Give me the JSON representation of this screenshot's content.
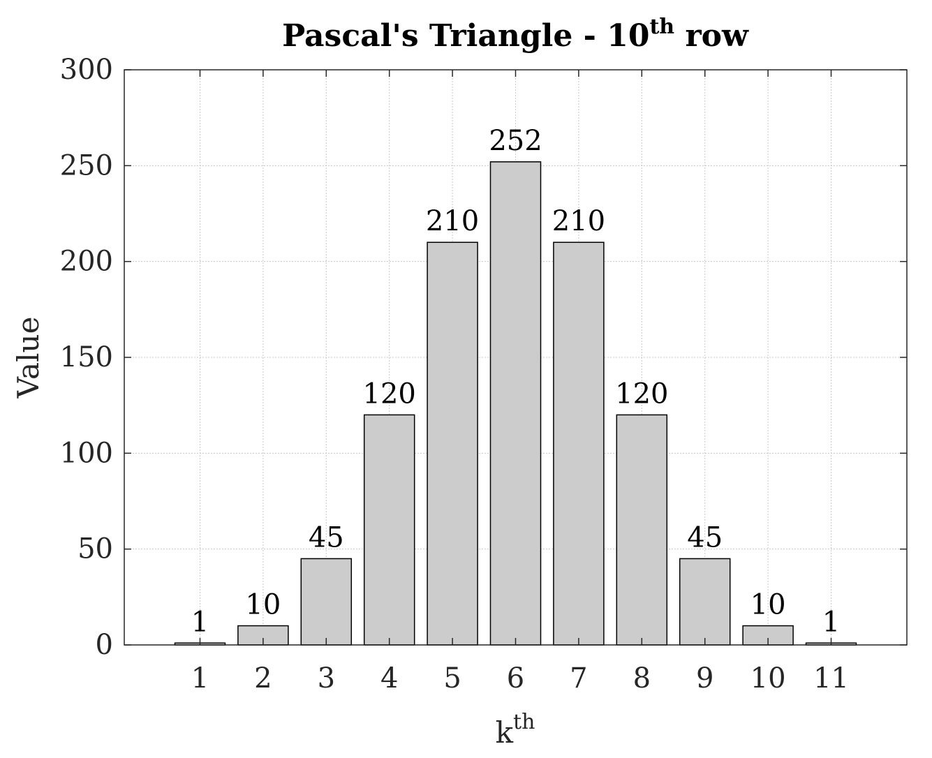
{
  "chart_data": {
    "type": "bar",
    "title": {
      "main": "Pascal's Triangle - 10",
      "sup": "th",
      "tail": " row"
    },
    "xlabel": {
      "main": "k",
      "sup": "th"
    },
    "ylabel": "Value",
    "categories": [
      "1",
      "2",
      "3",
      "4",
      "5",
      "6",
      "7",
      "8",
      "9",
      "10",
      "11"
    ],
    "values": [
      1,
      10,
      45,
      120,
      210,
      252,
      210,
      120,
      45,
      10,
      1
    ],
    "data_labels": [
      "1",
      "10",
      "45",
      "120",
      "210",
      "252",
      "210",
      "120",
      "45",
      "10",
      "1"
    ],
    "ylim": [
      0,
      300
    ],
    "xlim": [
      -0.2,
      12.2
    ],
    "yticks": [
      "0",
      "50",
      "100",
      "150",
      "200",
      "250",
      "300"
    ],
    "grid": true,
    "bar_color": "#cccccc",
    "bar_edge_color": "#000000"
  }
}
